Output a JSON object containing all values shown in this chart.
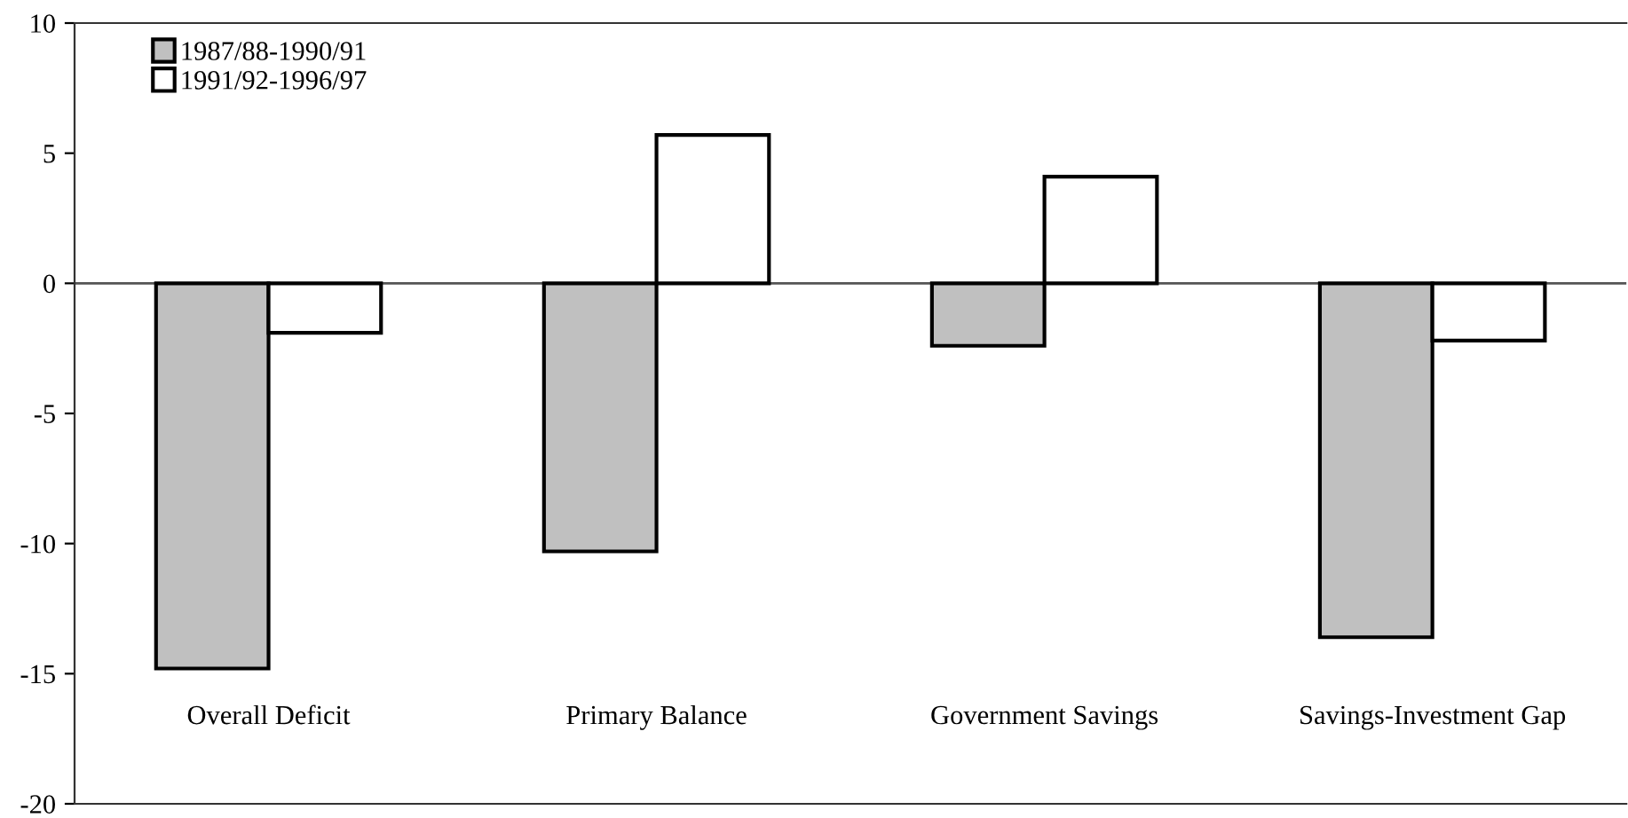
{
  "chart_data": {
    "type": "bar",
    "categories": [
      "Overall Deficit",
      "Primary Balance",
      "Government Savings",
      "Savings-Investment Gap"
    ],
    "series": [
      {
        "name": "1987/88-1990/91",
        "color": "#c0c0c0",
        "values": [
          -14.8,
          -10.3,
          -2.4,
          -13.6
        ]
      },
      {
        "name": "1991/92-1996/97",
        "color": "#ffffff",
        "values": [
          -1.9,
          5.7,
          4.1,
          -2.2
        ]
      }
    ],
    "ylim": [
      -20,
      10
    ],
    "yticks": [
      -20,
      -15,
      -10,
      -5,
      0,
      5,
      10
    ],
    "legend": "top left"
  }
}
